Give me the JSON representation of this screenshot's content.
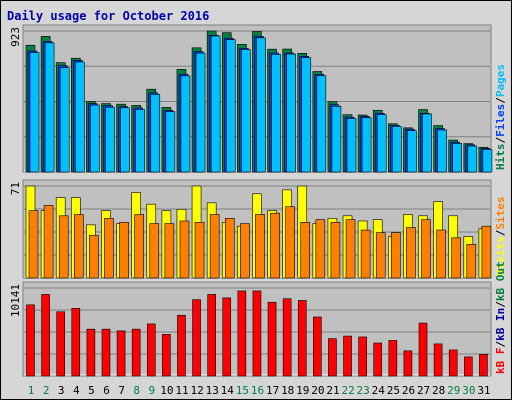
{
  "chart_data": {
    "type": "bar",
    "title": "Daily usage for October 2016",
    "days": [
      "1",
      "2",
      "3",
      "4",
      "5",
      "6",
      "7",
      "8",
      "9",
      "10",
      "11",
      "12",
      "13",
      "14",
      "15",
      "16",
      "17",
      "18",
      "19",
      "20",
      "21",
      "22",
      "23",
      "24",
      "25",
      "26",
      "27",
      "28",
      "29",
      "30",
      "31"
    ],
    "weekend_days": [
      1,
      2,
      8,
      9,
      15,
      16,
      22,
      23,
      29,
      30
    ],
    "colors": {
      "hits": "#008040",
      "files": "#0040ff",
      "pages": "#00c0ff",
      "visits": "#ffff00",
      "sites": "#ff8000",
      "kb_in": "#0000a0",
      "kb_out": "#008040",
      "kb_f": "#ff0000",
      "weekend_label": "#008040",
      "weekday_label": "#000000",
      "title": "#0000a8",
      "panel": "#c0c0c0",
      "grid": "#808080"
    },
    "panels": [
      {
        "id": "hits-files-pages",
        "ymax_label": "923",
        "ymax": 923,
        "right_label": [
          {
            "text": "Hits",
            "color": "#008040"
          },
          {
            "text": "/",
            "color": "#000000"
          },
          {
            "text": "Files",
            "color": "#0040ff"
          },
          {
            "text": "/",
            "color": "#000000"
          },
          {
            "text": "Pages",
            "color": "#00c0ff"
          }
        ],
        "series": [
          {
            "name": "Hits",
            "color": "#008040",
            "values": [
              830,
              888,
              716,
              745,
              461,
              448,
              444,
              436,
              542,
              423,
              672,
              813,
              923,
              912,
              836,
              920,
              804,
              805,
              777,
              658,
              460,
              375,
              373,
              404,
              316,
              289,
              409,
              304,
              209,
              186,
              162
            ]
          },
          {
            "name": "Files",
            "color": "#0040ff",
            "values": [
              792,
              855,
              696,
              731,
              447,
              435,
              428,
              420,
              518,
              404,
              640,
              788,
              895,
              876,
              809,
              888,
              779,
              779,
              757,
              639,
              440,
              359,
              364,
              385,
              306,
              280,
              384,
              284,
              195,
              178,
              154
            ]
          },
          {
            "name": "Pages",
            "color": "#00c0ff",
            "values": [
              782,
              845,
              683,
              720,
              438,
              424,
              420,
              409,
              508,
              395,
              629,
              778,
              890,
              866,
              802,
              878,
              770,
              772,
              748,
              630,
              430,
              350,
              355,
              375,
              298,
              270,
              380,
              275,
              187,
              170,
              147
            ]
          }
        ]
      },
      {
        "id": "visits-sites",
        "ymax_label": "71",
        "ymax": 71,
        "right_label": [
          {
            "text": "Visits",
            "color": "#ffff00"
          },
          {
            "text": "/",
            "color": "#000000"
          },
          {
            "text": "Sites",
            "color": "#ff8000"
          }
        ],
        "series": [
          {
            "name": "Visits",
            "color": "#ffff00",
            "values": [
              71,
              52,
              62,
              62,
              41,
              52,
              42,
              66,
              57,
              52,
              53,
              71,
              58,
              43,
              40,
              65,
              52,
              68,
              71,
              42,
              46,
              48,
              44,
              45,
              32,
              49,
              48,
              59,
              48,
              32,
              38
            ]
          },
          {
            "name": "Sites",
            "color": "#ff8000",
            "values": [
              52,
              56,
              48,
              49,
              33,
              46,
              43,
              49,
              42,
              42,
              44,
              43,
              49,
              46,
              42,
              49,
              50,
              55,
              43,
              45,
              43,
              45,
              37,
              35,
              35,
              39,
              45,
              37,
              31,
              26,
              40
            ]
          }
        ]
      },
      {
        "id": "kbytes",
        "ymax_label": "10141",
        "ymax": 10141,
        "right_label": [
          {
            "text": "kB F",
            "color": "#ff0000"
          },
          {
            "text": "/",
            "color": "#000000"
          },
          {
            "text": "kB In",
            "color": "#0000a0"
          },
          {
            "text": "/",
            "color": "#000000"
          },
          {
            "text": "kB Out",
            "color": "#008040"
          }
        ],
        "series": [
          {
            "name": "kB F",
            "color": "#ff0000",
            "values": [
              8200,
              9400,
              7400,
              7800,
              5400,
              5400,
              5200,
              5400,
              6000,
              4800,
              7000,
              8800,
              9400,
              9000,
              9800,
              9800,
              8500,
              8900,
              8700,
              6800,
              4300,
              4600,
              4500,
              3800,
              4100,
              2900,
              6100,
              3700,
              3000,
              2200,
              2500
            ]
          }
        ]
      }
    ]
  }
}
